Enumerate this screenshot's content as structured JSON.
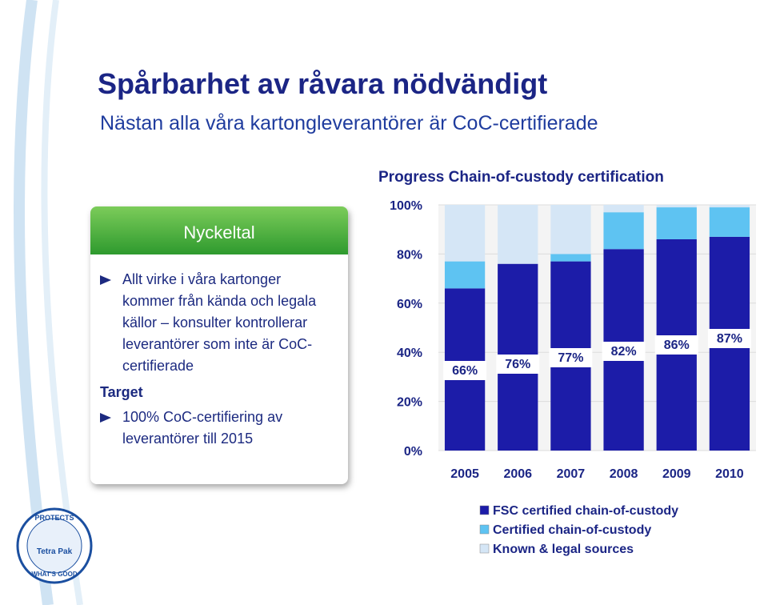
{
  "header": {
    "title": "Spårbarhet av råvara nödvändigt",
    "subtitle": "Nästan alla våra kartongleverantörer är CoC-certifierade"
  },
  "panel": {
    "heading": "Nyckeltal",
    "bullets": [
      "Allt virke i våra kartonger kommer från kända och legala källor – konsulter kontrollerar leverantörer som inte är CoC-certifierade"
    ],
    "subheading": "Target",
    "target_bullets": [
      "100% CoC-certifiering av leverantörer till 2015"
    ]
  },
  "logo": {
    "top": "PROTECTS",
    "brand": "Tetra Pak",
    "bottom": "WHAT'S GOOD"
  },
  "chart_data": {
    "type": "stacked_bar",
    "title": "Progress Chain-of-custody certification",
    "categories": [
      "2005",
      "2006",
      "2007",
      "2008",
      "2009",
      "2010"
    ],
    "series": [
      {
        "name": "FSC certified chain-of-custody",
        "color": "#1c1ca8",
        "values": [
          66,
          76,
          77,
          82,
          86,
          87
        ],
        "value_labels": [
          "66%",
          "76%",
          "77%",
          "82%",
          "86%",
          "87%"
        ]
      },
      {
        "name": "Certified chain-of-custody",
        "color": "#5ec3f2",
        "values": [
          11,
          0,
          3,
          15,
          13,
          12
        ]
      },
      {
        "name": "Known & legal sources",
        "color": "#d5e6f6",
        "values": [
          23,
          24,
          20,
          3,
          1,
          1
        ]
      }
    ],
    "ylim": [
      0,
      100
    ],
    "yticks": [
      {
        "value": 0,
        "label": "0%"
      },
      {
        "value": 20,
        "label": "20%"
      },
      {
        "value": 40,
        "label": "40%"
      },
      {
        "value": 60,
        "label": "60%"
      },
      {
        "value": 80,
        "label": "80%"
      },
      {
        "value": 100,
        "label": "100%"
      }
    ],
    "grid": true,
    "legend": "bottom"
  }
}
